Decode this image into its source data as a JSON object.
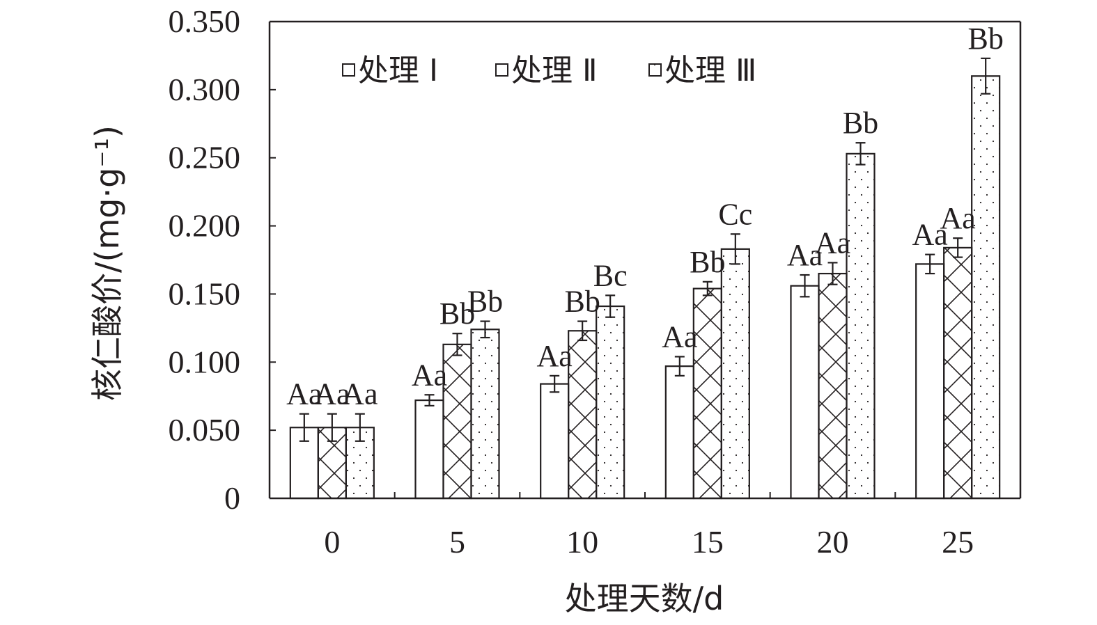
{
  "chart_data": {
    "type": "bar",
    "xlabel": "处理天数/d",
    "ylabel": "核仁酸价/(mg·g⁻¹)",
    "ylim": [
      0,
      0.35
    ],
    "y_ticks": [
      "0",
      "0.050",
      "0.100",
      "0.150",
      "0.200",
      "0.250",
      "0.300",
      "0.350"
    ],
    "y_tick_values": [
      0,
      0.05,
      0.1,
      0.15,
      0.2,
      0.25,
      0.3,
      0.35
    ],
    "categories": [
      "0",
      "5",
      "10",
      "15",
      "20",
      "25"
    ],
    "legend_position": "top-left",
    "grid": false,
    "series": [
      {
        "name": "处理 Ⅰ",
        "pattern": "blank",
        "values": [
          0.052,
          0.072,
          0.084,
          0.097,
          0.156,
          0.172
        ],
        "errors": [
          0.01,
          0.004,
          0.006,
          0.007,
          0.008,
          0.007
        ],
        "labels": [
          "Aa",
          "Aa",
          "Aa",
          "Aa",
          "Aa",
          "Aa"
        ]
      },
      {
        "name": "处理 Ⅱ",
        "pattern": "crosshatch",
        "values": [
          0.052,
          0.113,
          0.123,
          0.154,
          0.165,
          0.184
        ],
        "errors": [
          0.01,
          0.008,
          0.007,
          0.005,
          0.008,
          0.007
        ],
        "labels": [
          "Aa",
          "Bb",
          "Bb",
          "Bb",
          "Aa",
          "Aa"
        ]
      },
      {
        "name": "处理 Ⅲ",
        "pattern": "dotted",
        "values": [
          0.052,
          0.124,
          0.141,
          0.183,
          0.253,
          0.31
        ],
        "errors": [
          0.01,
          0.006,
          0.008,
          0.011,
          0.008,
          0.013
        ],
        "labels": [
          "Aa",
          "Bb",
          "Bc",
          "Cc",
          "Bb",
          "Bb"
        ]
      }
    ],
    "colors": {
      "ink": "#231f20",
      "fill": "#ffffff"
    }
  }
}
